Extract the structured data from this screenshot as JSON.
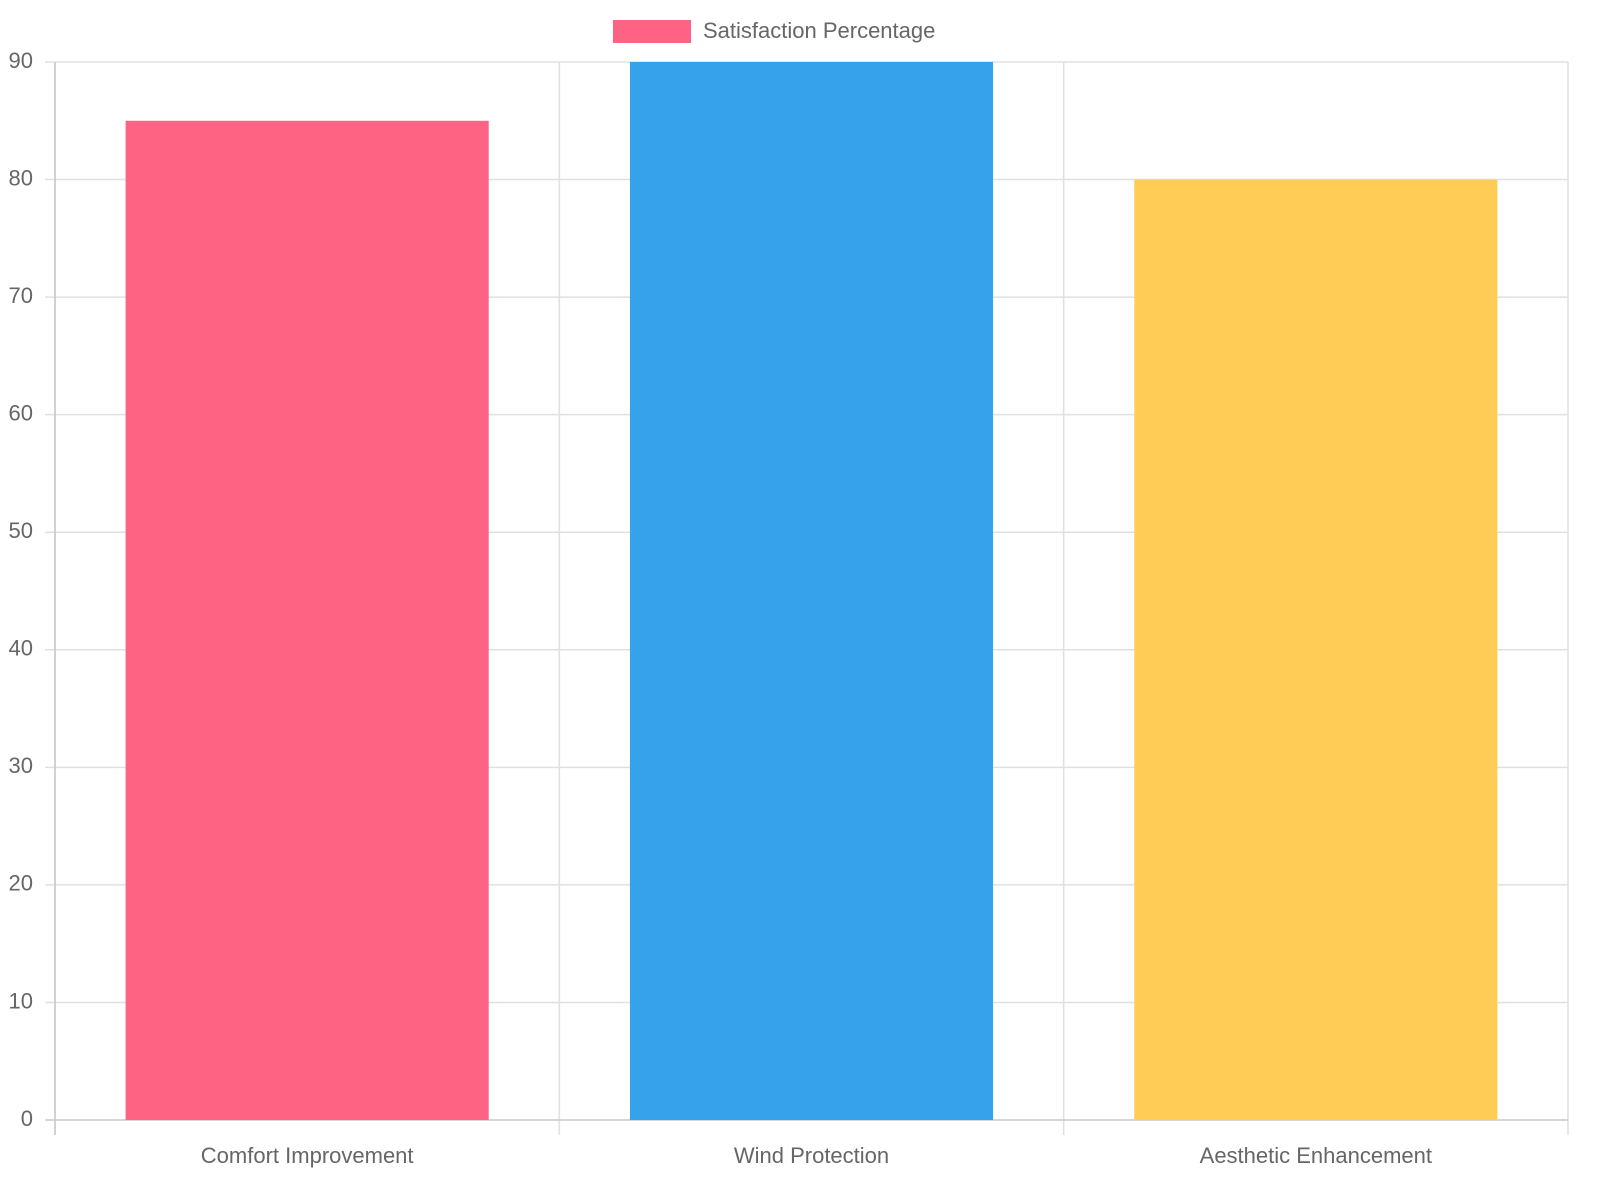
{
  "chart_data": {
    "type": "bar",
    "categories": [
      "Comfort Improvement",
      "Wind Protection",
      "Aesthetic Enhancement"
    ],
    "series": [
      {
        "name": "Satisfaction Percentage",
        "colors": [
          "#ff6384",
          "#36a2eb",
          "#ffcd56"
        ],
        "values": [
          85,
          90,
          80
        ]
      }
    ],
    "ylim": [
      0,
      90
    ],
    "yticks": [
      0,
      10,
      20,
      30,
      40,
      50,
      60,
      70,
      80,
      90
    ],
    "grid": true,
    "legend": "top"
  }
}
